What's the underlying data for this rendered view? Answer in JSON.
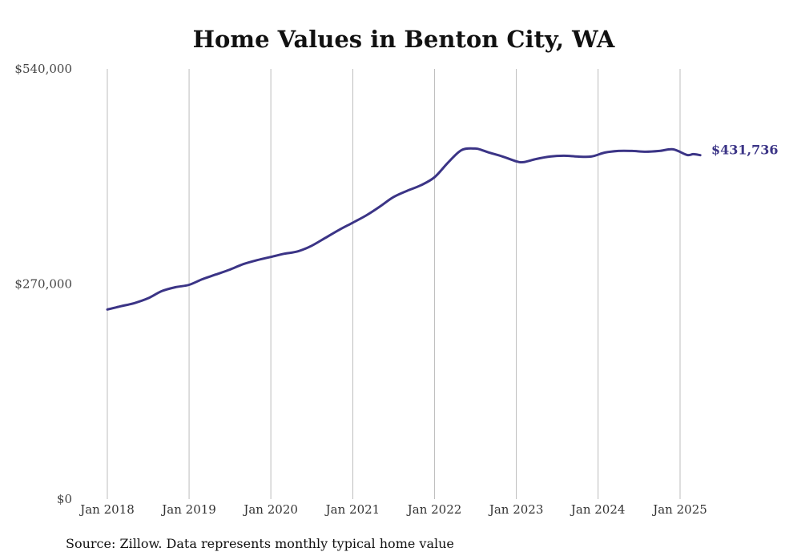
{
  "chart_data": {
    "type": "line",
    "title": "Home Values in Benton City, WA",
    "xlabel": "",
    "ylabel": "",
    "ylim": [
      0,
      540000
    ],
    "yticks": [
      0,
      270000,
      540000
    ],
    "ytick_labels": [
      "$0",
      "$270,000",
      "$540,000"
    ],
    "xticks": [
      "2018-01",
      "2019-01",
      "2020-01",
      "2021-01",
      "2022-01",
      "2023-01",
      "2024-01",
      "2025-01"
    ],
    "xtick_labels": [
      "Jan 2018",
      "Jan 2019",
      "Jan 2020",
      "Jan 2021",
      "Jan 2022",
      "Jan 2023",
      "Jan 2024",
      "Jan 2025"
    ],
    "grid": "vertical",
    "line_color": "#3b3486",
    "end_label": "$431,736",
    "source": "Source: Zillow. Data represents monthly typical home value",
    "series": [
      {
        "x": [
          "2018-01",
          "2018-03",
          "2018-05",
          "2018-07",
          "2018-09",
          "2018-11",
          "2019-01",
          "2019-03",
          "2019-05",
          "2019-07",
          "2019-09",
          "2019-11",
          "2020-01",
          "2020-03",
          "2020-05",
          "2020-07",
          "2020-09",
          "2020-11",
          "2021-01",
          "2021-03",
          "2021-05",
          "2021-07",
          "2021-09",
          "2021-11",
          "2022-01",
          "2022-03",
          "2022-05",
          "2022-07",
          "2022-08",
          "2022-09",
          "2022-11",
          "2023-01",
          "2023-02",
          "2023-04",
          "2023-06",
          "2023-08",
          "2023-10",
          "2023-12",
          "2024-02",
          "2024-04",
          "2024-06",
          "2024-08",
          "2024-10",
          "2024-12",
          "2025-02",
          "2025-03",
          "2025-04"
        ],
        "values": [
          238000,
          242000,
          246000,
          252000,
          261000,
          266000,
          269000,
          276000,
          282000,
          288000,
          295000,
          300000,
          304000,
          308000,
          311000,
          318000,
          328000,
          338000,
          347000,
          356000,
          367000,
          379000,
          387000,
          394000,
          404000,
          422000,
          438000,
          440000,
          438000,
          435000,
          430000,
          424000,
          423000,
          427000,
          430000,
          431000,
          430000,
          430000,
          435000,
          437000,
          437000,
          436000,
          437000,
          439000,
          432000,
          433000,
          431736
        ]
      }
    ]
  }
}
